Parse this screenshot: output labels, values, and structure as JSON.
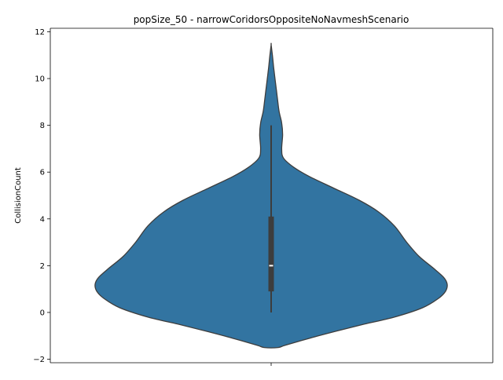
{
  "chart_data": {
    "type": "violin",
    "title": "popSize_50 - narrowCoridorsOppositeNoNavmeshScenario",
    "xlabel": "",
    "ylabel": "CollisionCount",
    "ylim": [
      -2.15,
      12.15
    ],
    "yticks": [
      -2,
      0,
      2,
      4,
      6,
      8,
      10,
      12
    ],
    "ytick_labels": [
      "−2",
      "0",
      "2",
      "4",
      "6",
      "8",
      "10",
      "12"
    ],
    "grid": false,
    "colors": {
      "violin_fill": "#3274a1",
      "violin_edge": "#3d3d3d",
      "box": "#3d3d3d",
      "median": "#ffffff"
    },
    "violin": {
      "density_profile": [
        {
          "y": -1.5,
          "half_width": 0.04
        },
        {
          "y": -1.4,
          "half_width": 0.08
        },
        {
          "y": -1.1,
          "half_width": 0.22
        },
        {
          "y": -0.8,
          "half_width": 0.37
        },
        {
          "y": -0.5,
          "half_width": 0.53
        },
        {
          "y": -0.2,
          "half_width": 0.7
        },
        {
          "y": 0.2,
          "half_width": 0.86
        },
        {
          "y": 0.6,
          "half_width": 0.95
        },
        {
          "y": 0.9,
          "half_width": 0.99
        },
        {
          "y": 1.2,
          "half_width": 1.0
        },
        {
          "y": 1.5,
          "half_width": 0.98
        },
        {
          "y": 1.9,
          "half_width": 0.92
        },
        {
          "y": 2.4,
          "half_width": 0.84
        },
        {
          "y": 3.0,
          "half_width": 0.77
        },
        {
          "y": 3.7,
          "half_width": 0.7
        },
        {
          "y": 4.3,
          "half_width": 0.61
        },
        {
          "y": 4.8,
          "half_width": 0.5
        },
        {
          "y": 5.3,
          "half_width": 0.36
        },
        {
          "y": 5.8,
          "half_width": 0.22
        },
        {
          "y": 6.2,
          "half_width": 0.13
        },
        {
          "y": 6.6,
          "half_width": 0.07
        },
        {
          "y": 7.0,
          "half_width": 0.06
        },
        {
          "y": 7.6,
          "half_width": 0.065
        },
        {
          "y": 8.1,
          "half_width": 0.06
        },
        {
          "y": 8.6,
          "half_width": 0.045
        },
        {
          "y": 9.2,
          "half_width": 0.035
        },
        {
          "y": 9.8,
          "half_width": 0.025
        },
        {
          "y": 10.5,
          "half_width": 0.014
        },
        {
          "y": 11.0,
          "half_width": 0.007
        },
        {
          "y": 11.45,
          "half_width": 0.0
        }
      ],
      "whisker_low": 0,
      "q1": 0.9,
      "median": 2,
      "q3": 4.1,
      "whisker_high": 8
    }
  }
}
